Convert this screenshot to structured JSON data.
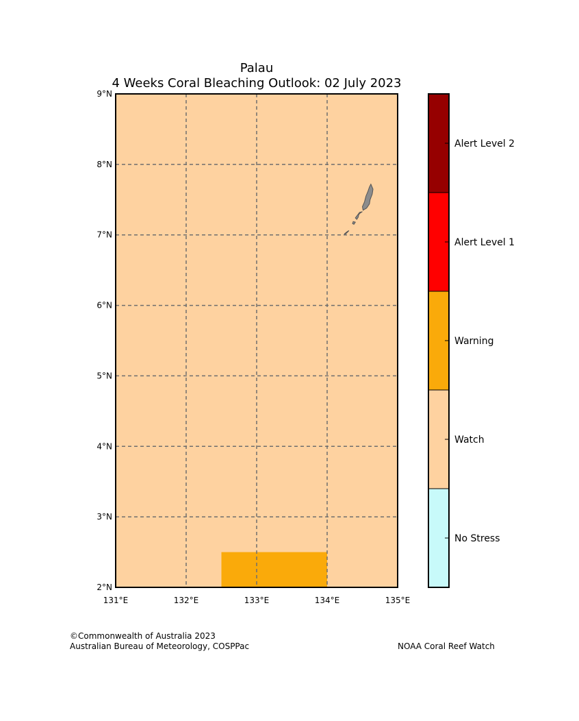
{
  "title": {
    "line1": "Palau",
    "line2": "4 Weeks Coral Bleaching Outlook: 02 July 2023"
  },
  "map": {
    "lon_range": [
      131,
      135
    ],
    "lat_range": [
      2,
      9
    ],
    "background_category": "Watch",
    "lon_ticks": [
      {
        "value": 131,
        "label": "131°E"
      },
      {
        "value": 132,
        "label": "132°E"
      },
      {
        "value": 133,
        "label": "133°E"
      },
      {
        "value": 134,
        "label": "134°E"
      },
      {
        "value": 135,
        "label": "135°E"
      }
    ],
    "lat_ticks": [
      {
        "value": 2,
        "label": "2°N"
      },
      {
        "value": 3,
        "label": "3°N"
      },
      {
        "value": 4,
        "label": "4°N"
      },
      {
        "value": 5,
        "label": "5°N"
      },
      {
        "value": 6,
        "label": "6°N"
      },
      {
        "value": 7,
        "label": "7°N"
      },
      {
        "value": 8,
        "label": "8°N"
      },
      {
        "value": 9,
        "label": "9°N"
      }
    ],
    "regions": [
      {
        "category": "Warning",
        "lon": [
          132.5,
          134.0
        ],
        "lat": [
          2.0,
          2.5
        ]
      }
    ],
    "land": {
      "name": "Palau islands",
      "color": "#8c8c8c",
      "outline_color": "#555555",
      "polygons": [
        [
          [
            134.62,
            7.72
          ],
          [
            134.65,
            7.65
          ],
          [
            134.64,
            7.58
          ],
          [
            134.61,
            7.5
          ],
          [
            134.6,
            7.44
          ],
          [
            134.56,
            7.38
          ],
          [
            134.51,
            7.35
          ],
          [
            134.5,
            7.4
          ],
          [
            134.53,
            7.47
          ],
          [
            134.55,
            7.55
          ],
          [
            134.58,
            7.62
          ],
          [
            134.6,
            7.68
          ]
        ],
        [
          [
            134.5,
            7.33
          ],
          [
            134.47,
            7.31
          ],
          [
            134.45,
            7.29
          ],
          [
            134.44,
            7.25
          ],
          [
            134.42,
            7.22
          ],
          [
            134.4,
            7.24
          ],
          [
            134.43,
            7.28
          ],
          [
            134.46,
            7.32
          ]
        ],
        [
          [
            134.4,
            7.18
          ],
          [
            134.38,
            7.15
          ],
          [
            134.36,
            7.16
          ],
          [
            134.37,
            7.19
          ]
        ],
        [
          [
            134.31,
            7.06
          ],
          [
            134.27,
            7.02
          ],
          [
            134.24,
            7.0
          ],
          [
            134.25,
            7.02
          ],
          [
            134.29,
            7.05
          ]
        ]
      ]
    }
  },
  "colorbar": {
    "categories": [
      {
        "label": "No Stress",
        "color": "#c8fafa"
      },
      {
        "label": "Watch",
        "color": "#fed2a0"
      },
      {
        "label": "Warning",
        "color": "#faaa0a"
      },
      {
        "label": "Alert Level 1",
        "color": "#ff0000"
      },
      {
        "label": "Alert Level 2",
        "color": "#960000"
      }
    ]
  },
  "footer": {
    "copyright": "©Commonwealth of Australia 2023",
    "agency": "Australian Bureau of Meteorology, COSPPac",
    "credit": "NOAA Coral Reef Watch"
  }
}
